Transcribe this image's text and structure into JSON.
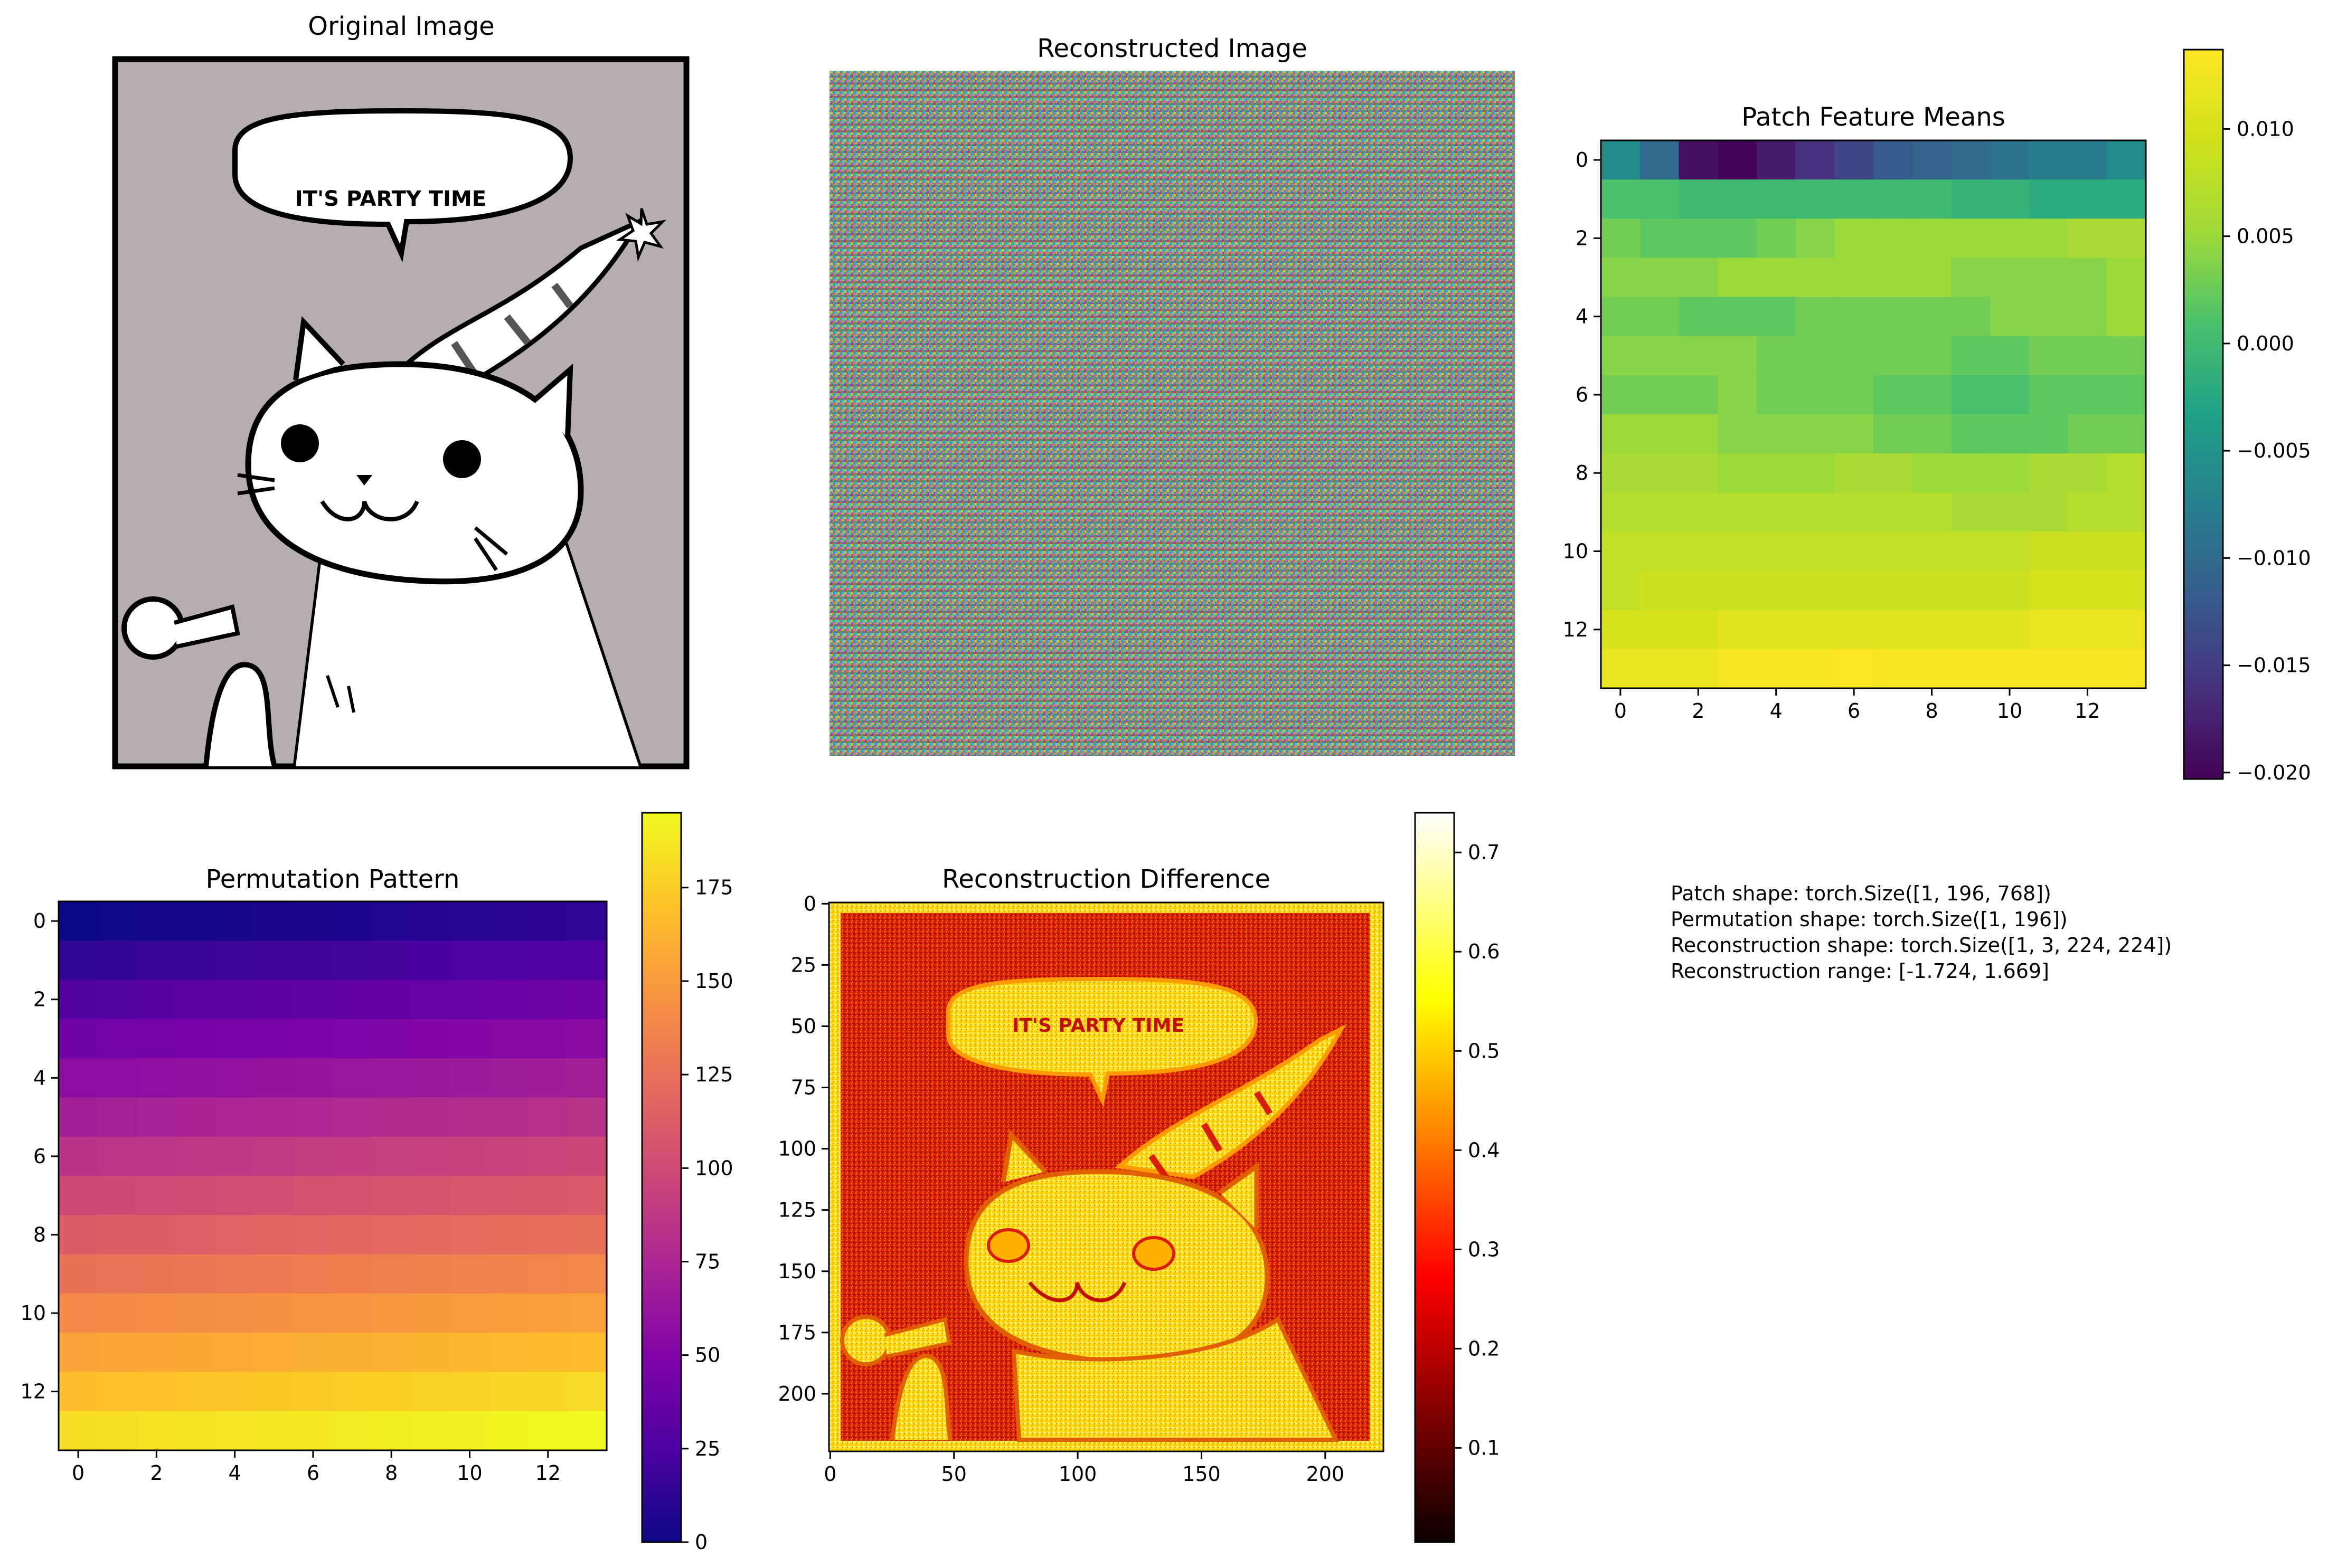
{
  "chart_data": [
    {
      "type": "image",
      "title": "Original Image",
      "axes_visible": false,
      "content": "grayscale comic drawing"
    },
    {
      "type": "image",
      "title": "Reconstructed Image",
      "axes_visible": false,
      "content": "random colored noise"
    },
    {
      "type": "heatmap",
      "title": "Patch Feature Means",
      "colormap": "viridis",
      "grid": [
        14,
        14
      ],
      "xticks": [
        "0",
        "2",
        "4",
        "6",
        "8",
        "10",
        "12"
      ],
      "yticks": [
        "0",
        "2",
        "4",
        "6",
        "8",
        "10",
        "12"
      ],
      "colorbar": {
        "range": [
          -0.0203,
          0.0137
        ],
        "ticks": [
          "0.010",
          "0.005",
          "0.000",
          "−0.005",
          "−0.010",
          "−0.015",
          "−0.020"
        ],
        "tick_values": [
          0.01,
          0.005,
          0.0,
          -0.005,
          -0.01,
          -0.015,
          -0.02
        ]
      },
      "values": [
        [
          -0.006,
          -0.01,
          -0.019,
          -0.02,
          -0.018,
          -0.016,
          -0.014,
          -0.012,
          -0.011,
          -0.01,
          -0.009,
          -0.008,
          -0.008,
          -0.006
        ],
        [
          0.001,
          0.001,
          0.0,
          0.0,
          0.0,
          0.0,
          0.0,
          0.0,
          0.0,
          -0.001,
          -0.001,
          -0.002,
          -0.002,
          -0.002
        ],
        [
          0.003,
          0.002,
          0.002,
          0.002,
          0.003,
          0.004,
          0.005,
          0.005,
          0.005,
          0.005,
          0.005,
          0.005,
          0.006,
          0.006
        ],
        [
          0.004,
          0.004,
          0.004,
          0.005,
          0.005,
          0.005,
          0.005,
          0.005,
          0.005,
          0.004,
          0.004,
          0.004,
          0.004,
          0.005
        ],
        [
          0.003,
          0.003,
          0.002,
          0.002,
          0.002,
          0.003,
          0.003,
          0.003,
          0.003,
          0.003,
          0.004,
          0.004,
          0.004,
          0.005
        ],
        [
          0.004,
          0.004,
          0.004,
          0.004,
          0.003,
          0.003,
          0.003,
          0.003,
          0.003,
          0.002,
          0.002,
          0.003,
          0.003,
          0.003
        ],
        [
          0.003,
          0.003,
          0.003,
          0.004,
          0.003,
          0.003,
          0.003,
          0.002,
          0.002,
          0.001,
          0.001,
          0.002,
          0.002,
          0.002
        ],
        [
          0.005,
          0.005,
          0.005,
          0.004,
          0.004,
          0.004,
          0.004,
          0.003,
          0.003,
          0.002,
          0.002,
          0.002,
          0.003,
          0.003
        ],
        [
          0.006,
          0.006,
          0.006,
          0.005,
          0.005,
          0.005,
          0.006,
          0.006,
          0.005,
          0.005,
          0.005,
          0.006,
          0.006,
          0.007
        ],
        [
          0.007,
          0.007,
          0.007,
          0.007,
          0.007,
          0.007,
          0.007,
          0.007,
          0.007,
          0.006,
          0.006,
          0.006,
          0.007,
          0.007
        ],
        [
          0.008,
          0.008,
          0.008,
          0.008,
          0.008,
          0.008,
          0.008,
          0.008,
          0.008,
          0.008,
          0.008,
          0.009,
          0.009,
          0.009
        ],
        [
          0.008,
          0.009,
          0.009,
          0.009,
          0.009,
          0.009,
          0.009,
          0.009,
          0.009,
          0.009,
          0.009,
          0.01,
          0.01,
          0.01
        ],
        [
          0.01,
          0.01,
          0.01,
          0.011,
          0.011,
          0.011,
          0.011,
          0.011,
          0.011,
          0.011,
          0.011,
          0.012,
          0.012,
          0.012
        ],
        [
          0.012,
          0.012,
          0.012,
          0.013,
          0.013,
          0.013,
          0.014,
          0.013,
          0.013,
          0.013,
          0.013,
          0.013,
          0.013,
          0.013
        ]
      ]
    },
    {
      "type": "heatmap",
      "title": "Permutation Pattern",
      "colormap": "plasma",
      "grid": [
        14,
        14
      ],
      "xticks": [
        "0",
        "2",
        "4",
        "6",
        "8",
        "10",
        "12"
      ],
      "yticks": [
        "0",
        "2",
        "4",
        "6",
        "8",
        "10",
        "12"
      ],
      "colorbar": {
        "range": [
          0,
          195
        ],
        "ticks": [
          "175",
          "150",
          "125",
          "100",
          "75",
          "50",
          "25",
          "0"
        ],
        "tick_values": [
          175,
          150,
          125,
          100,
          75,
          50,
          25,
          0
        ]
      },
      "values_rule": "row-major index: value = row * 14 + col"
    },
    {
      "type": "heatmap",
      "title": "Reconstruction Difference",
      "colormap": "hot",
      "xticks": [
        "0",
        "50",
        "100",
        "150",
        "200"
      ],
      "xtick_values": [
        0,
        50,
        100,
        150,
        200
      ],
      "yticks": [
        "0",
        "25",
        "50",
        "75",
        "100",
        "125",
        "150",
        "175",
        "200"
      ],
      "ytick_values": [
        0,
        25,
        50,
        75,
        100,
        125,
        150,
        175,
        200
      ],
      "extent": [
        224,
        224
      ],
      "colorbar": {
        "range": [
          0.005,
          0.74
        ],
        "ticks": [
          "0.7",
          "0.6",
          "0.5",
          "0.4",
          "0.3",
          "0.2",
          "0.1"
        ],
        "tick_values": [
          0.7,
          0.6,
          0.5,
          0.4,
          0.3,
          0.2,
          0.1
        ]
      }
    }
  ],
  "info_text": [
    "Patch shape: torch.Size([1, 196, 768])",
    "Permutation shape: torch.Size([1, 196])",
    "Reconstruction shape: torch.Size([1, 3, 224, 224])",
    "Reconstruction range: [-1.724, 1.669]"
  ],
  "drawing_text": {
    "speech_bubble": "IT'S PARTY TIME",
    "diff_bubble": "IT'S PARTY TIME"
  }
}
